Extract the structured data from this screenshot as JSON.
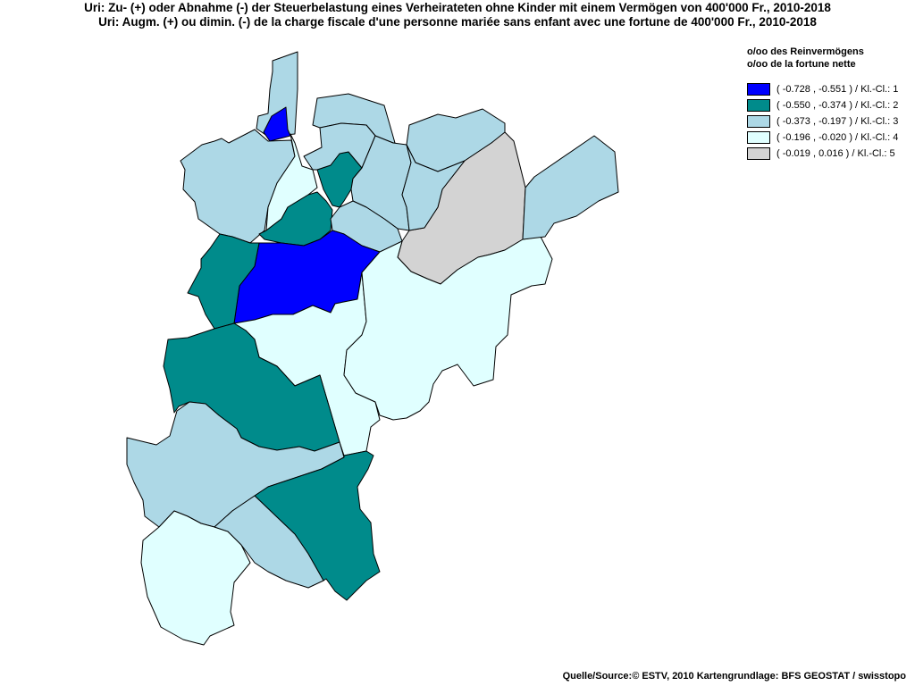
{
  "title": {
    "de": "Uri: Zu- (+) oder Abnahme (-) der Steuerbelastung  eines Verheirateten ohne Kinder mit einem Vermögen von 400'000 Fr., 2010-2018",
    "fr": "Uri: Augm. (+) ou dimin. (-) de la charge fiscale d'une personne mariée sans enfant avec une fortune de 400'000 Fr., 2010-2018"
  },
  "legend": {
    "heading_de": "o/oo des Reinvermögens",
    "heading_fr": "o/oo de la fortune nette",
    "classes": [
      {
        "label": "( -0.728 , -0.551 ) / Kl.-Cl.: 1",
        "color": "#0000ff"
      },
      {
        "label": "( -0.550 , -0.374 ) / Kl.-Cl.: 2",
        "color": "#008b8b"
      },
      {
        "label": "( -0.373 , -0.197 ) / Kl.-Cl.: 3",
        "color": "#add8e6"
      },
      {
        "label": "( -0.196 , -0.020 ) / Kl.-Cl.: 4",
        "color": "#e0ffff"
      },
      {
        "label": " ( -0.019 , 0.016 ) / Kl.-Cl.: 5",
        "color": "#d3d3d3"
      }
    ]
  },
  "map": {
    "regions": [
      {
        "id": "r01",
        "class": 3
      },
      {
        "id": "r02",
        "class": 1
      },
      {
        "id": "r03",
        "class": 3
      },
      {
        "id": "r04",
        "class": 4
      },
      {
        "id": "r05",
        "class": 3
      },
      {
        "id": "r06",
        "class": 2
      },
      {
        "id": "r07",
        "class": 3
      },
      {
        "id": "r08",
        "class": 3
      },
      {
        "id": "r09",
        "class": 3
      },
      {
        "id": "r10",
        "class": 5
      },
      {
        "id": "r11",
        "class": 3
      },
      {
        "id": "r12",
        "class": 2
      },
      {
        "id": "r13",
        "class": 3
      },
      {
        "id": "r14",
        "class": 1
      },
      {
        "id": "r15",
        "class": 2
      },
      {
        "id": "r16",
        "class": 4
      },
      {
        "id": "r17",
        "class": 4
      },
      {
        "id": "r18",
        "class": 3
      },
      {
        "id": "r19",
        "class": 2
      },
      {
        "id": "r20",
        "class": 3
      },
      {
        "id": "r21",
        "class": 2
      },
      {
        "id": "r22",
        "class": 4
      },
      {
        "id": "r23",
        "class": 3
      }
    ]
  },
  "source": "Quelle/Source:© ESTV, 2010 Kartengrundlage: BFS GEOSTAT / swisstopo"
}
